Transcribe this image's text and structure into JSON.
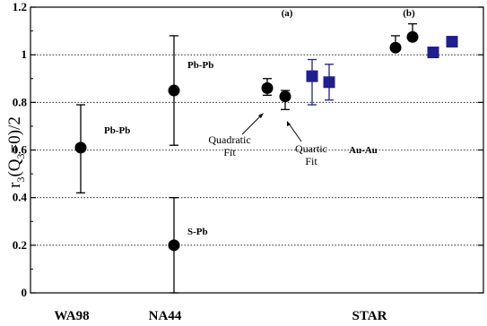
{
  "chart_data": {
    "type": "scatter",
    "ylabel": {
      "pre": "r",
      "sub1": "3",
      "mid": "(Q",
      "sub2": "3",
      "post": "=0)/2"
    },
    "ylim": [
      0,
      1.2
    ],
    "yticks": [
      "0",
      "0.2",
      "0.4",
      "0.6",
      "0.8",
      "1",
      "1.2"
    ],
    "grid": "horizontal-dotted",
    "categories": [
      "WA98",
      "NA44",
      "STAR"
    ],
    "colors": {
      "circle": "#000000",
      "square": "#1f1f8f",
      "square_error": "#1f1f8f",
      "error": "#000000",
      "grid": "#000000"
    },
    "series": [
      {
        "marker": "circle",
        "points": [
          {
            "x": 90,
            "y": 0.61,
            "lo": 0.42,
            "hi": 0.79
          },
          {
            "x": 194,
            "y": 0.85,
            "lo": 0.62,
            "hi": 1.08
          },
          {
            "x": 194,
            "y": 0.2,
            "lo": 0.0,
            "hi": 0.4
          },
          {
            "x": 298,
            "y": 0.86,
            "lo": 0.83,
            "hi": 0.9
          },
          {
            "x": 318,
            "y": 0.825,
            "lo": 0.77,
            "hi": 0.85
          },
          {
            "x": 441,
            "y": 1.03,
            "lo": 1.03,
            "hi": 1.08
          },
          {
            "x": 460,
            "y": 1.075,
            "lo": 1.075,
            "hi": 1.13
          }
        ]
      },
      {
        "marker": "square",
        "points": [
          {
            "x": 348,
            "y": 0.91,
            "lo": 0.79,
            "hi": 0.98
          },
          {
            "x": 367,
            "y": 0.885,
            "lo": 0.81,
            "hi": 0.96
          },
          {
            "x": 483,
            "y": 1.01,
            "lo": 1.01,
            "hi": 1.01
          },
          {
            "x": 504,
            "y": 1.055,
            "lo": 1.035,
            "hi": 1.075
          }
        ]
      }
    ],
    "annotations": {
      "wa98_label": "Pb-Pb",
      "na44_pbpb": "Pb-Pb",
      "na44_spb": "S-Pb",
      "star_aa": "Au-Au",
      "panel_a": "(a)",
      "panel_b": "(b)",
      "quad_line1": "Quadratic",
      "quad_line2": "Fit",
      "quart_line1": "Quartic",
      "quart_line2": "Fit"
    }
  }
}
